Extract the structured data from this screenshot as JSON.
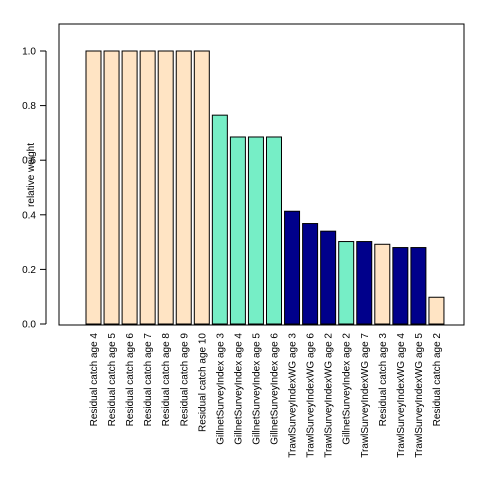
{
  "chart_data": {
    "type": "bar",
    "title": "",
    "xlabel": "",
    "ylabel": "relative weight",
    "ylim": [
      0,
      1.1
    ],
    "yticks": [
      0.0,
      0.2,
      0.4,
      0.6,
      0.8,
      1.0
    ],
    "ytick_labels": [
      "0.0",
      "0.2",
      "0.4",
      "0.6",
      "0.8",
      "1.0"
    ],
    "grid": false,
    "legend": "none",
    "group_colors": {
      "Residual catch": "#ffe4c4",
      "GillnetSurveyIndex": "#76eec6",
      "TrawlSurveyIndexWG": "#00008b"
    },
    "categories": [
      "Residual catch age 4",
      "Residual catch age 5",
      "Residual catch age 6",
      "Residual catch age 7",
      "Residual catch age 8",
      "Residual catch age 9",
      "Residual catch age 10",
      "GillnetSurveyIndex age 3",
      "GillnetSurveyIndex age 4",
      "GillnetSurveyIndex age 5",
      "GillnetSurveyIndex age 6",
      "TrawlSurveyIndexWG age 3",
      "TrawlSurveyIndexWG age 6",
      "TrawlSurveyIndexWG age 2",
      "GillnetSurveyIndex age 2",
      "TrawlSurveyIndexWG age 7",
      "Residual catch age 3",
      "TrawlSurveyIndexWG age 4",
      "TrawlSurveyIndexWG age 5",
      "Residual catch age 2"
    ],
    "groups": [
      "Residual catch",
      "Residual catch",
      "Residual catch",
      "Residual catch",
      "Residual catch",
      "Residual catch",
      "Residual catch",
      "GillnetSurveyIndex",
      "GillnetSurveyIndex",
      "GillnetSurveyIndex",
      "GillnetSurveyIndex",
      "TrawlSurveyIndexWG",
      "TrawlSurveyIndexWG",
      "TrawlSurveyIndexWG",
      "GillnetSurveyIndex",
      "TrawlSurveyIndexWG",
      "Residual catch",
      "TrawlSurveyIndexWG",
      "TrawlSurveyIndexWG",
      "Residual catch"
    ],
    "values": [
      1.0,
      1.0,
      1.0,
      1.0,
      1.0,
      1.0,
      1.0,
      0.765,
      0.685,
      0.685,
      0.685,
      0.413,
      0.368,
      0.34,
      0.302,
      0.302,
      0.292,
      0.28,
      0.28,
      0.098
    ]
  }
}
